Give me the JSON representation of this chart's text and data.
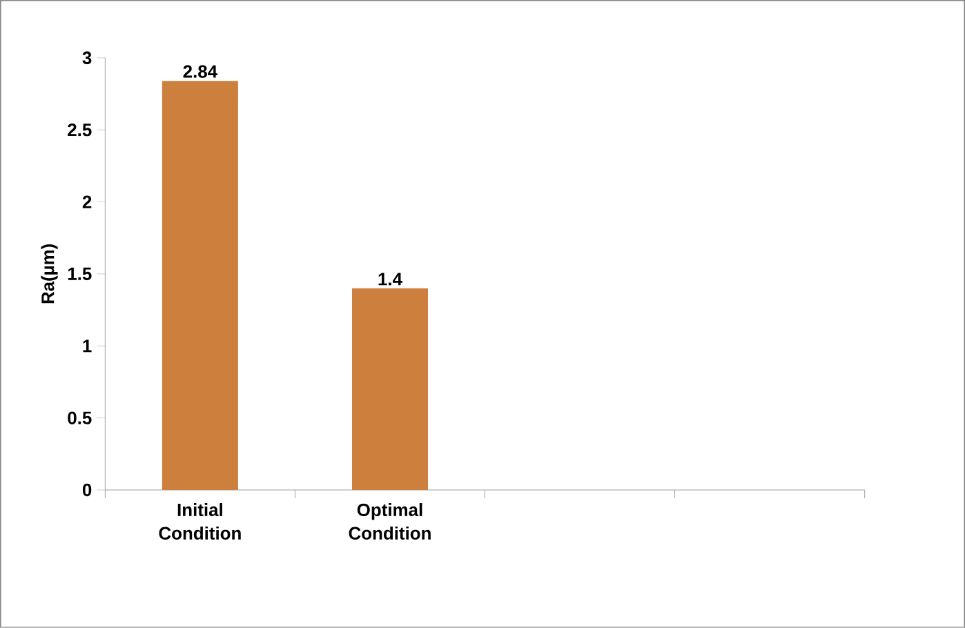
{
  "chart_data": {
    "type": "bar",
    "ylabel": "Ra(µm)",
    "categories": [
      "Initial Condition",
      "Optimal Condition",
      null,
      null
    ],
    "values": [
      2.84,
      1.4,
      null,
      null
    ],
    "value_labels": [
      "2.84",
      "1.4",
      null,
      null
    ],
    "color": "#cd7f3e",
    "ylim": [
      0,
      3
    ],
    "yticks": [
      0,
      0.5,
      1,
      1.5,
      2,
      2.5,
      3
    ]
  }
}
